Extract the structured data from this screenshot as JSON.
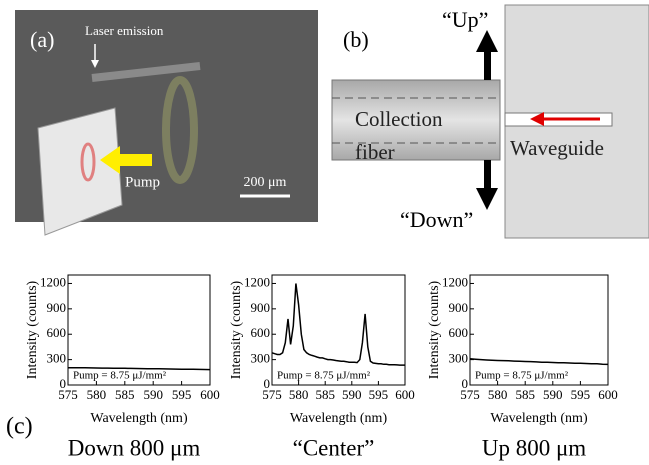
{
  "panel_a": {
    "label": "(a)",
    "emission_label": "Laser emission",
    "pump_label": "Pump",
    "scale_bar": "200 μm"
  },
  "panel_b": {
    "label": "(b)",
    "up": "“Up”",
    "down": "“Down”",
    "fiber_lines": [
      "Collection",
      "fiber"
    ],
    "waveguide": "Waveguide"
  },
  "panel_c_label": "(c)",
  "chart_data": [
    {
      "type": "line",
      "caption": "Down 800 μm",
      "annotation": "Pump = 8.75 μJ/mm²",
      "x_label": "Wavelength (nm)",
      "y_label": "Intensity (counts)",
      "color": "#000000",
      "x": [
        575,
        576,
        577,
        578,
        579,
        580,
        581,
        582,
        583,
        584,
        585,
        586,
        587,
        588,
        589,
        590,
        591,
        592,
        593,
        594,
        595,
        596,
        597,
        598,
        599,
        600
      ],
      "values": [
        205,
        205,
        204,
        203,
        202,
        201,
        200,
        200,
        199,
        198,
        197,
        196,
        195,
        194,
        193,
        192,
        191,
        190,
        189,
        188,
        187,
        186,
        185,
        184,
        183,
        182
      ],
      "xlim": [
        575,
        600
      ],
      "xticks": [
        575,
        580,
        585,
        590,
        595,
        600
      ],
      "ylim": [
        0,
        1300
      ],
      "yticks": [
        0,
        300,
        600,
        900,
        1200
      ]
    },
    {
      "type": "line",
      "caption": "“Center”",
      "annotation": "Pump = 8.75 μJ/mm²",
      "x_label": "Wavelength (nm)",
      "y_label": "Intensity (counts)",
      "color": "#000000",
      "x": [
        575,
        575.5,
        576,
        576.5,
        577,
        577.5,
        578,
        578.5,
        579,
        579.5,
        580,
        580.5,
        581,
        581.5,
        582,
        582.5,
        583,
        583.5,
        584,
        584.5,
        585,
        585.5,
        586,
        586.5,
        587,
        587.5,
        588,
        588.5,
        589,
        589.5,
        590,
        590.5,
        591,
        591.5,
        592,
        592.5,
        593,
        593.5,
        594,
        594.5,
        595,
        595.5,
        596,
        596.5,
        597,
        597.5,
        598,
        598.5,
        599,
        599.5,
        600
      ],
      "values": [
        380,
        370,
        360,
        360,
        380,
        500,
        780,
        480,
        700,
        1200,
        950,
        600,
        420,
        380,
        360,
        350,
        340,
        330,
        320,
        320,
        310,
        300,
        300,
        295,
        290,
        285,
        280,
        280,
        275,
        270,
        270,
        270,
        265,
        300,
        500,
        840,
        450,
        280,
        260,
        255,
        250,
        250,
        245,
        245,
        240,
        240,
        240,
        238,
        235,
        235,
        235
      ],
      "xlim": [
        575,
        600
      ],
      "xticks": [
        575,
        580,
        585,
        590,
        595,
        600
      ],
      "ylim": [
        0,
        1300
      ],
      "yticks": [
        0,
        300,
        600,
        900,
        1200
      ]
    },
    {
      "type": "line",
      "caption": "Up 800 μm",
      "annotation": "Pump = 8.75 μJ/mm²",
      "x_label": "Wavelength (nm)",
      "y_label": "Intensity (counts)",
      "color": "#000000",
      "x": [
        575,
        576,
        577,
        578,
        579,
        580,
        581,
        582,
        583,
        584,
        585,
        586,
        587,
        588,
        589,
        590,
        591,
        592,
        593,
        594,
        595,
        596,
        597,
        598,
        599,
        600
      ],
      "values": [
        310,
        305,
        300,
        296,
        292,
        290,
        288,
        286,
        283,
        280,
        278,
        276,
        273,
        270,
        268,
        266,
        264,
        262,
        260,
        258,
        256,
        254,
        252,
        250,
        246,
        244
      ],
      "xlim": [
        575,
        600
      ],
      "xticks": [
        575,
        580,
        585,
        590,
        595,
        600
      ],
      "ylim": [
        0,
        1300
      ],
      "yticks": [
        0,
        300,
        600,
        900,
        1200
      ]
    }
  ]
}
